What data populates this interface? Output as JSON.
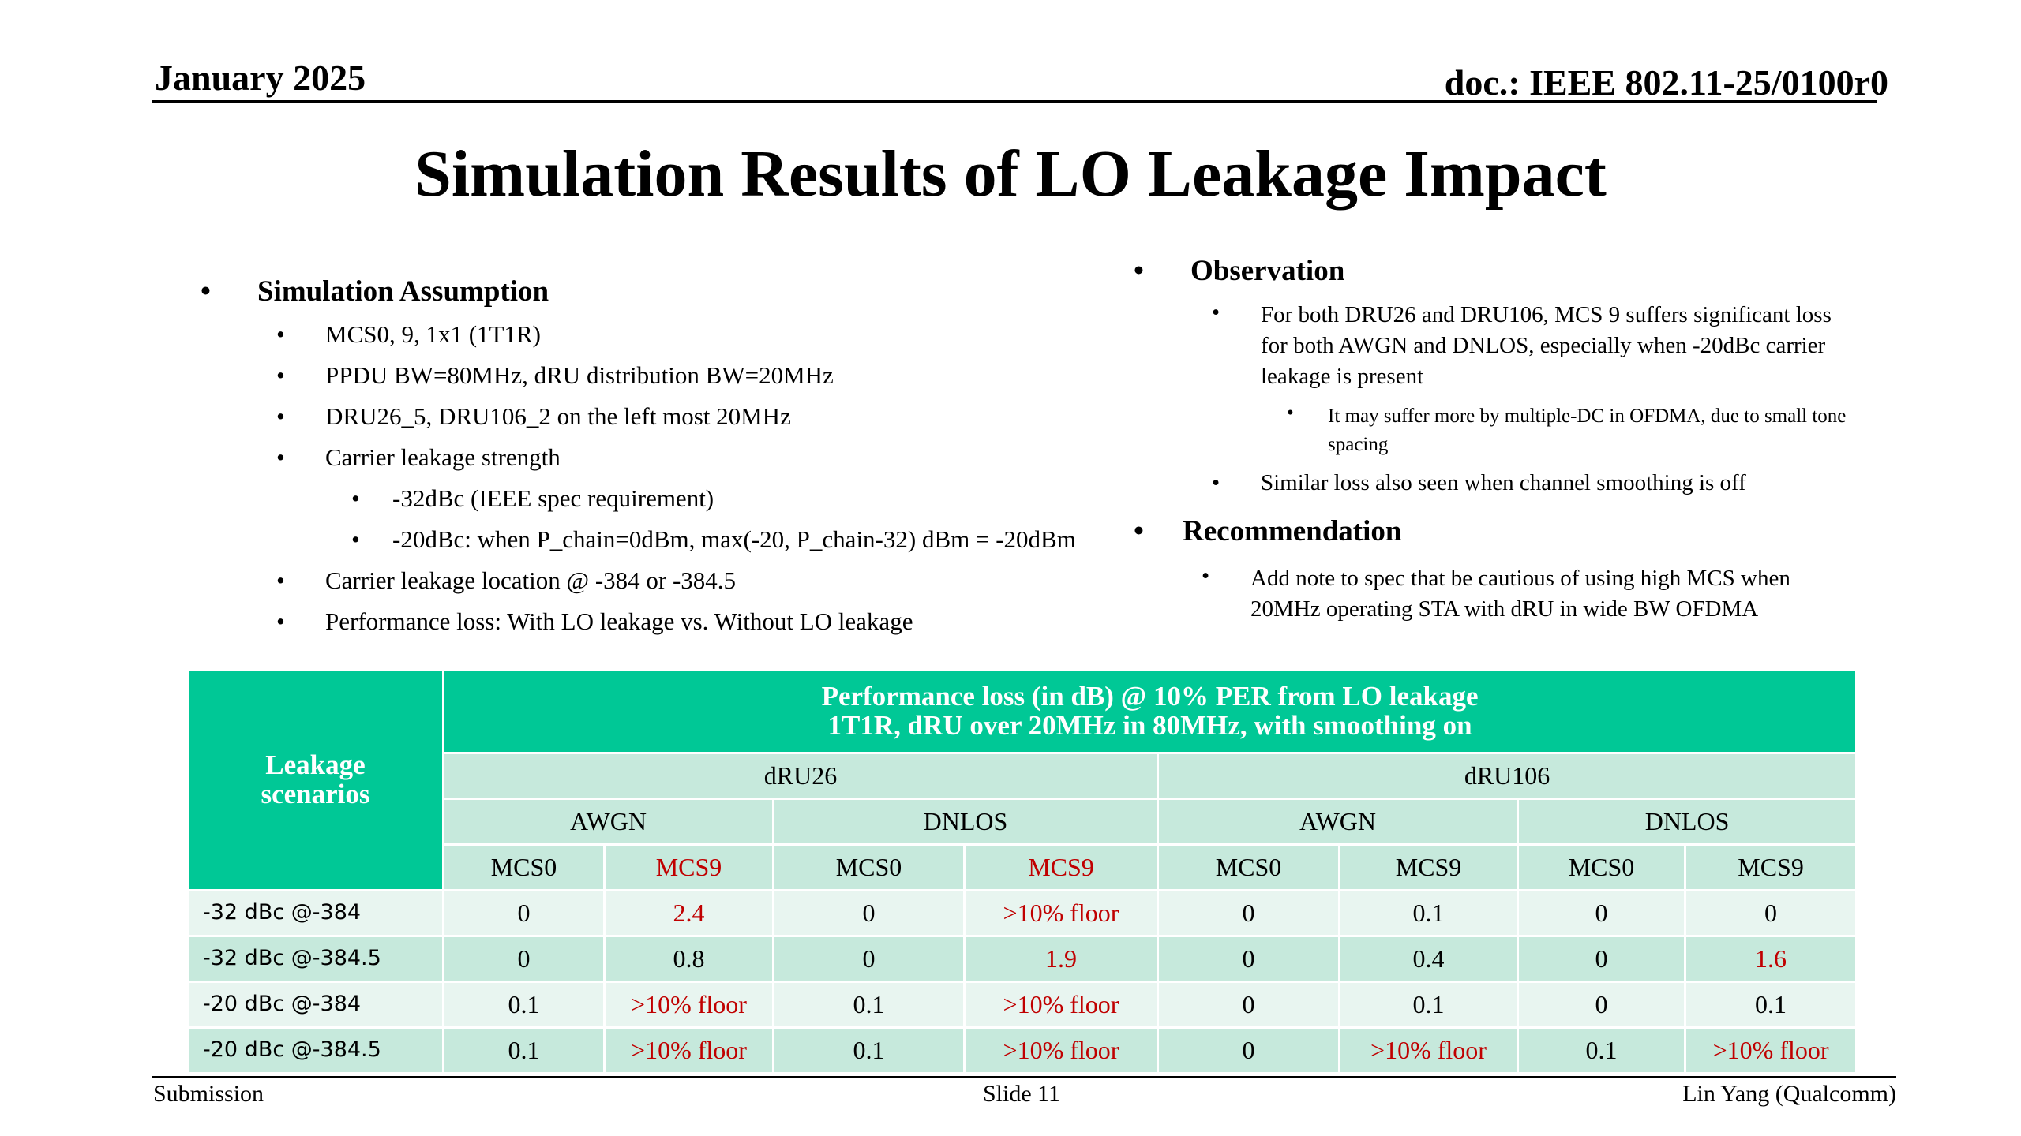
{
  "header": {
    "date": "January 2025",
    "doc": "doc.: IEEE 802.11-25/0100r0"
  },
  "title": "Simulation Results of LO Leakage Impact",
  "left": {
    "heading": "Simulation Assumption",
    "items": [
      "MCS0, 9, 1x1 (1T1R)",
      "PPDU BW=80MHz, dRU distribution BW=20MHz",
      "DRU26_5, DRU106_2 on the left most 20MHz",
      "Carrier leakage strength",
      "-32dBc (IEEE spec requirement)",
      "-20dBc: when P_chain=0dBm, max(-20, P_chain-32) dBm = -20dBm",
      "Carrier leakage location @ -384 or -384.5",
      "Performance loss: With LO leakage vs. Without LO leakage"
    ]
  },
  "right": {
    "obs_heading": "Observation",
    "obs_items": [
      "For both DRU26 and DRU106, MCS 9 suffers significant loss for both AWGN and DNLOS, especially when -20dBc carrier leakage is present",
      "It may suffer more by multiple-DC in OFDMA, due to small tone spacing",
      "Similar loss also seen when channel smoothing is off"
    ],
    "rec_heading": "Recommendation",
    "rec_items": [
      "Add note to spec that be cautious of using high MCS when 20MHz operating STA with dRU in wide BW OFDMA"
    ]
  },
  "table": {
    "corner": [
      "Leakage",
      "scenarios"
    ],
    "main_header": [
      "Performance loss (in dB) @ 10% PER from LO leakage",
      "1T1R, dRU over 20MHz in 80MHz, with smoothing on"
    ],
    "groups": [
      "dRU26",
      "dRU106"
    ],
    "channels": [
      "AWGN",
      "DNLOS",
      "AWGN",
      "DNLOS"
    ],
    "mcs": [
      "MCS0",
      "MCS9",
      "MCS0",
      "MCS9",
      "MCS0",
      "MCS9",
      "MCS0",
      "MCS9"
    ],
    "rows": [
      {
        "label": "-32 dBc @-384",
        "values": [
          "0",
          "2.4",
          "0",
          ">10% floor",
          "0",
          "0.1",
          "0",
          "0"
        ]
      },
      {
        "label": "-32 dBc @-384.5",
        "values": [
          "0",
          "0.8",
          "0",
          "1.9",
          "0",
          "0.4",
          "0",
          "1.6"
        ]
      },
      {
        "label": "-20 dBc @-384",
        "values": [
          "0.1",
          ">10% floor",
          "0.1",
          ">10% floor",
          "0",
          "0.1",
          "0",
          "0.1"
        ]
      },
      {
        "label": "-20 dBc @-384.5",
        "values": [
          "0.1",
          ">10% floor",
          "0.1",
          ">10% floor",
          "0",
          ">10% floor",
          "0.1",
          ">10% floor"
        ]
      }
    ]
  },
  "footer": {
    "left": "Submission",
    "center": "Slide 11",
    "right": "Lin Yang (Qualcomm)"
  },
  "colors": {
    "header_fill": "#00c896",
    "sub_fill": "#c6e9dc",
    "row_light": "#e8f5f0",
    "highlight_text": "#c00000"
  }
}
